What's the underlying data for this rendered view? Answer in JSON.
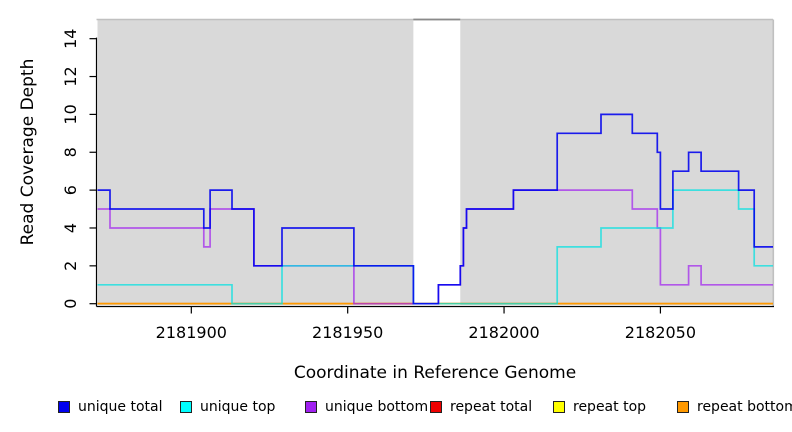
{
  "figure": {
    "x_axis": {
      "label": "Coordinate in Reference Genome",
      "tick_labels": [
        "2181900",
        "2181950",
        "2182000",
        "2182050"
      ],
      "tick_values": [
        2181900,
        2181950,
        2182000,
        2182050
      ]
    },
    "y_axis": {
      "label": "Read Coverage Depth",
      "tick_labels": [
        "0",
        "2",
        "4",
        "6",
        "8",
        "10",
        "12",
        "14"
      ],
      "tick_values": [
        0,
        2,
        4,
        6,
        8,
        10,
        12,
        14
      ]
    }
  },
  "legend": {
    "items": [
      {
        "label": "unique total",
        "color": "#0000EE"
      },
      {
        "label": "unique top",
        "color": "#00FFFF"
      },
      {
        "label": "unique bottom",
        "color": "#A020F0"
      },
      {
        "label": "repeat total",
        "color": "#EE0000"
      },
      {
        "label": "repeat top",
        "color": "#FFFF00"
      },
      {
        "label": "repeat bottom",
        "color": "#FF9900"
      }
    ]
  },
  "chart_data": {
    "type": "line",
    "subtype": "step-coverage-plot",
    "title": "",
    "xlabel": "Coordinate in Reference Genome",
    "ylabel": "Read Coverage Depth",
    "xlim": [
      2181870,
      2182086
    ],
    "ylim": [
      0,
      15
    ],
    "grid": false,
    "plot_background": "#D9D9D9",
    "masked_region": {
      "x_start": 2181971,
      "x_end": 2181986,
      "color": "#FFFFFF"
    },
    "series": [
      {
        "name": "repeat total",
        "color": "#DD0000",
        "opacity": 1,
        "points": [
          [
            2181870,
            0
          ]
        ]
      },
      {
        "name": "repeat top",
        "color": "#FFEE00",
        "opacity": 1,
        "points": [
          [
            2181870,
            0
          ]
        ]
      },
      {
        "name": "repeat bottom",
        "color": "#FF9900",
        "opacity": 1,
        "points": [
          [
            2181870,
            0
          ]
        ]
      },
      {
        "name": "unique bottom",
        "color": "#A020F0",
        "opacity": 0.7,
        "points": [
          [
            2181870,
            5
          ],
          [
            2181874,
            4
          ],
          [
            2181904,
            3
          ],
          [
            2181906,
            5
          ],
          [
            2181920,
            2
          ],
          [
            2181952,
            0
          ],
          [
            2181979,
            1
          ],
          [
            2181986,
            2
          ],
          [
            2181987,
            4
          ],
          [
            2181988,
            5
          ],
          [
            2182003,
            6
          ],
          [
            2182041,
            5
          ],
          [
            2182049,
            4
          ],
          [
            2182050,
            1
          ],
          [
            2182059,
            2
          ],
          [
            2182063,
            1
          ]
        ]
      },
      {
        "name": "unique top",
        "color": "#00E0E0",
        "opacity": 0.72,
        "points": [
          [
            2181870,
            1
          ],
          [
            2181913,
            0
          ],
          [
            2181929,
            2
          ],
          [
            2181971,
            0
          ],
          [
            2182017,
            3
          ],
          [
            2182031,
            4
          ],
          [
            2182054,
            6
          ],
          [
            2182075,
            5
          ],
          [
            2182080,
            2
          ]
        ]
      },
      {
        "name": "unique total",
        "color": "#0000EE",
        "opacity": 0.88,
        "points": [
          [
            2181870,
            6
          ],
          [
            2181874,
            5
          ],
          [
            2181904,
            4
          ],
          [
            2181906,
            6
          ],
          [
            2181913,
            5
          ],
          [
            2181920,
            2
          ],
          [
            2181929,
            4
          ],
          [
            2181952,
            2
          ],
          [
            2181971,
            0
          ],
          [
            2181979,
            1
          ],
          [
            2181986,
            2
          ],
          [
            2181987,
            4
          ],
          [
            2181988,
            5
          ],
          [
            2182003,
            6
          ],
          [
            2182017,
            9
          ],
          [
            2182031,
            10
          ],
          [
            2182041,
            9
          ],
          [
            2182049,
            8
          ],
          [
            2182050,
            5
          ],
          [
            2182054,
            7
          ],
          [
            2182059,
            8
          ],
          [
            2182063,
            7
          ],
          [
            2182075,
            6
          ],
          [
            2182080,
            3
          ]
        ]
      }
    ]
  }
}
